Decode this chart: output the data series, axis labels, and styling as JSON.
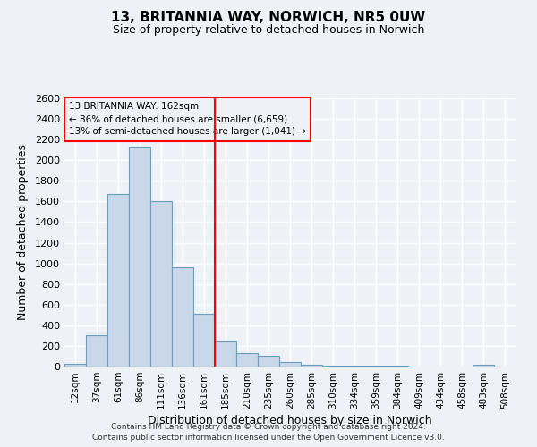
{
  "title": "13, BRITANNIA WAY, NORWICH, NR5 0UW",
  "subtitle": "Size of property relative to detached houses in Norwich",
  "xlabel": "Distribution of detached houses by size in Norwich",
  "ylabel": "Number of detached properties",
  "bin_labels": [
    "12sqm",
    "37sqm",
    "61sqm",
    "86sqm",
    "111sqm",
    "136sqm",
    "161sqm",
    "185sqm",
    "210sqm",
    "235sqm",
    "260sqm",
    "285sqm",
    "310sqm",
    "334sqm",
    "359sqm",
    "384sqm",
    "409sqm",
    "434sqm",
    "458sqm",
    "483sqm",
    "508sqm"
  ],
  "bin_values": [
    25,
    300,
    1670,
    2130,
    1600,
    960,
    510,
    255,
    130,
    100,
    40,
    20,
    12,
    8,
    5,
    5,
    3,
    3,
    0,
    20,
    0
  ],
  "bar_color": "#c8d8e8",
  "bar_edge_color": "#6a9dc0",
  "vline_index": 6,
  "vline_color": "red",
  "annotation_title": "13 BRITANNIA WAY: 162sqm",
  "annotation_line1": "← 86% of detached houses are smaller (6,659)",
  "annotation_line2": "13% of semi-detached houses are larger (1,041) →",
  "annotation_box_color": "red",
  "ylim": [
    0,
    2600
  ],
  "yticks": [
    0,
    200,
    400,
    600,
    800,
    1000,
    1200,
    1400,
    1600,
    1800,
    2000,
    2200,
    2400,
    2600
  ],
  "footer1": "Contains HM Land Registry data © Crown copyright and database right 2024.",
  "footer2": "Contains public sector information licensed under the Open Government Licence v3.0.",
  "background_color": "#eef2f7",
  "grid_color": "white"
}
